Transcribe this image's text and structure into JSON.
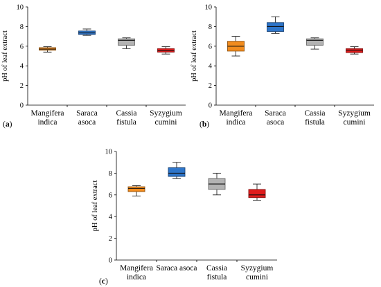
{
  "chart_data": [
    {
      "type": "box",
      "panel_label": {
        "open": "(",
        "letter": "a",
        "close": ")"
      },
      "ylabel": "pH of leaf extract",
      "ylim": [
        0,
        10
      ],
      "yticks": [
        "0",
        "2",
        "4",
        "6",
        "8",
        "10"
      ],
      "categories": [
        [
          "Mangifera",
          "indica"
        ],
        [
          "Saraca",
          "asoca"
        ],
        [
          "Cassia",
          "fistula"
        ],
        [
          "Syzygium",
          "cumini"
        ]
      ],
      "boxes": [
        {
          "min": 5.4,
          "q1": 5.6,
          "median": 5.7,
          "q3": 5.85,
          "max": 5.95,
          "color": "#f28c1e"
        },
        {
          "min": 7.1,
          "q1": 7.2,
          "median": 7.35,
          "q3": 7.55,
          "max": 7.75,
          "color": "#2e75c9"
        },
        {
          "min": 5.75,
          "q1": 6.1,
          "median": 6.6,
          "q3": 6.75,
          "max": 6.85,
          "color": "#b3b3b3"
        },
        {
          "min": 5.2,
          "q1": 5.4,
          "median": 5.55,
          "q3": 5.75,
          "max": 5.95,
          "color": "#e01b1b"
        }
      ]
    },
    {
      "type": "box",
      "panel_label": {
        "open": "(",
        "letter": "b",
        "close": ")"
      },
      "ylabel": "pH of leaf extract",
      "ylim": [
        0,
        10
      ],
      "yticks": [
        "0",
        "2",
        "4",
        "6",
        "8",
        "10"
      ],
      "categories": [
        [
          "Mangifera",
          "indica"
        ],
        [
          "Saraca",
          "asoca"
        ],
        [
          "Cassia",
          "fistula"
        ],
        [
          "Syzygium",
          "cumini"
        ]
      ],
      "boxes": [
        {
          "min": 5.0,
          "q1": 5.5,
          "median": 6.0,
          "q3": 6.5,
          "max": 7.0,
          "color": "#f28c1e"
        },
        {
          "min": 7.3,
          "q1": 7.5,
          "median": 8.0,
          "q3": 8.4,
          "max": 9.0,
          "color": "#2e75c9"
        },
        {
          "min": 5.7,
          "q1": 6.1,
          "median": 6.6,
          "q3": 6.75,
          "max": 6.85,
          "color": "#b3b3b3"
        },
        {
          "min": 5.2,
          "q1": 5.35,
          "median": 5.6,
          "q3": 5.75,
          "max": 5.95,
          "color": "#e01b1b"
        }
      ]
    },
    {
      "type": "box",
      "panel_label": {
        "open": "(",
        "letter": "c",
        "close": ")"
      },
      "ylabel": "pH of leaf extract",
      "ylim": [
        0,
        10
      ],
      "yticks": [
        "0",
        "2",
        "4",
        "6",
        "8",
        "10"
      ],
      "categories": [
        [
          "Mangifera",
          "indica"
        ],
        [
          "Saraca asoca"
        ],
        [
          "Cassia",
          "fistula"
        ],
        [
          "Syzygium",
          "cumini"
        ]
      ],
      "boxes": [
        {
          "min": 5.9,
          "q1": 6.3,
          "median": 6.6,
          "q3": 6.75,
          "max": 6.85,
          "color": "#f28c1e"
        },
        {
          "min": 7.5,
          "q1": 7.7,
          "median": 8.0,
          "q3": 8.5,
          "max": 9.0,
          "color": "#2e75c9"
        },
        {
          "min": 6.0,
          "q1": 6.5,
          "median": 7.0,
          "q3": 7.5,
          "max": 8.0,
          "color": "#b3b3b3"
        },
        {
          "min": 5.5,
          "q1": 5.75,
          "median": 6.0,
          "q3": 6.5,
          "max": 7.0,
          "color": "#e01b1b"
        }
      ]
    }
  ]
}
